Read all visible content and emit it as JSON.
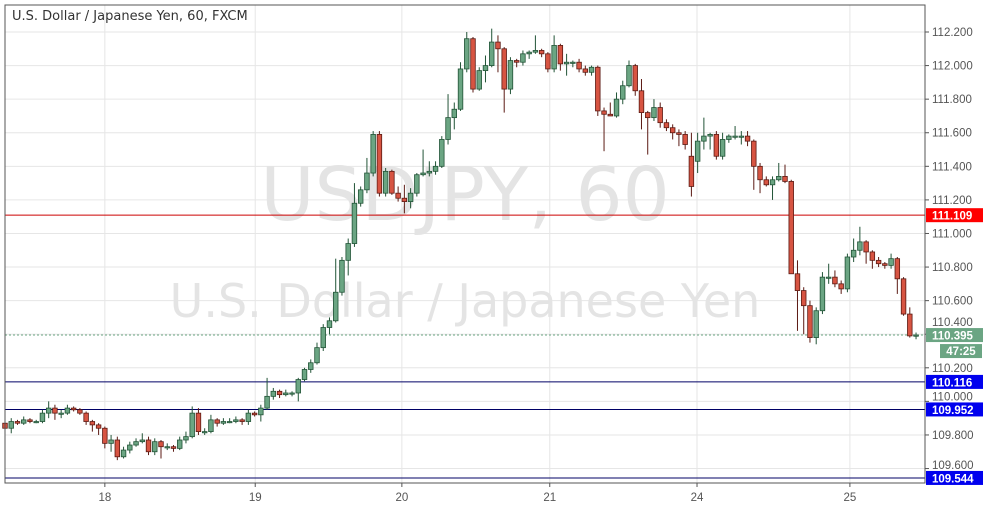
{
  "chart_data": {
    "type": "candlestick",
    "title": "U.S. Dollar / Japanese Yen, 60, FXCM",
    "watermark": {
      "symbol": "USDJPY, 60",
      "description": "U.S. Dollar / Japanese Yen"
    },
    "ylim": [
      109.46,
      112.34
    ],
    "y_ticks": [
      "112.200",
      "112.000",
      "111.800",
      "111.600",
      "111.400",
      "111.200",
      "111.000",
      "110.800",
      "110.600",
      "110.400",
      "110.200",
      "110.000",
      "109.800",
      "109.600"
    ],
    "x_ticks": [
      {
        "label": "18",
        "bar": 16.0
      },
      {
        "label": "19",
        "bar": 40.1
      },
      {
        "label": "20",
        "bar": 63.6
      },
      {
        "label": "21",
        "bar": 87.3
      },
      {
        "label": "24",
        "bar": 110.9
      },
      {
        "label": "25",
        "bar": 135.4
      }
    ],
    "ohlc": [
      [
        109.87,
        109.89,
        109.82,
        109.84
      ],
      [
        109.84,
        109.9,
        109.81,
        109.88
      ],
      [
        109.88,
        109.89,
        109.86,
        109.87
      ],
      [
        109.87,
        109.91,
        109.86,
        109.89
      ],
      [
        109.89,
        109.9,
        109.87,
        109.88
      ],
      [
        109.88,
        109.89,
        109.87,
        109.88
      ],
      [
        109.88,
        109.95,
        109.87,
        109.93
      ],
      [
        109.93,
        110.0,
        109.9,
        109.96
      ],
      [
        109.96,
        109.98,
        109.89,
        109.93
      ],
      [
        109.93,
        109.95,
        109.9,
        109.93
      ],
      [
        109.93,
        109.98,
        109.92,
        109.96
      ],
      [
        109.96,
        109.97,
        109.94,
        109.95
      ],
      [
        109.95,
        109.96,
        109.92,
        109.93
      ],
      [
        109.93,
        109.94,
        109.86,
        109.88
      ],
      [
        109.88,
        109.89,
        109.82,
        109.86
      ],
      [
        109.86,
        109.87,
        109.8,
        109.84
      ],
      [
        109.84,
        109.85,
        109.72,
        109.75
      ],
      [
        109.75,
        109.8,
        109.7,
        109.77
      ],
      [
        109.77,
        109.79,
        109.65,
        109.67
      ],
      [
        109.67,
        109.73,
        109.66,
        109.71
      ],
      [
        109.71,
        109.76,
        109.69,
        109.74
      ],
      [
        109.74,
        109.78,
        109.73,
        109.76
      ],
      [
        109.76,
        109.81,
        109.75,
        109.77
      ],
      [
        109.77,
        109.79,
        109.68,
        109.7
      ],
      [
        109.7,
        109.78,
        109.68,
        109.76
      ],
      [
        109.76,
        109.77,
        109.66,
        109.73
      ],
      [
        109.73,
        109.75,
        109.71,
        109.73
      ],
      [
        109.73,
        109.74,
        109.7,
        109.72
      ],
      [
        109.72,
        109.79,
        109.71,
        109.77
      ],
      [
        109.77,
        109.82,
        109.75,
        109.79
      ],
      [
        109.79,
        109.97,
        109.78,
        109.93
      ],
      [
        109.93,
        109.96,
        109.8,
        109.82
      ],
      [
        109.82,
        109.84,
        109.8,
        109.82
      ],
      [
        109.82,
        109.92,
        109.81,
        109.89
      ],
      [
        109.89,
        109.9,
        109.85,
        109.87
      ],
      [
        109.87,
        109.9,
        109.86,
        109.88
      ],
      [
        109.88,
        109.9,
        109.87,
        109.88
      ],
      [
        109.88,
        109.91,
        109.87,
        109.89
      ],
      [
        109.89,
        109.9,
        109.86,
        109.88
      ],
      [
        109.88,
        109.95,
        109.86,
        109.93
      ],
      [
        109.93,
        109.94,
        109.91,
        109.92
      ],
      [
        109.92,
        109.98,
        109.88,
        109.96
      ],
      [
        109.96,
        110.14,
        109.95,
        110.03
      ],
      [
        110.03,
        110.08,
        110.01,
        110.06
      ],
      [
        110.06,
        110.07,
        110.02,
        110.04
      ],
      [
        110.04,
        110.07,
        110.03,
        110.05
      ],
      [
        110.05,
        110.06,
        110.03,
        110.05
      ],
      [
        110.05,
        110.14,
        110.0,
        110.13
      ],
      [
        110.13,
        110.2,
        110.12,
        110.19
      ],
      [
        110.19,
        110.25,
        110.17,
        110.23
      ],
      [
        110.23,
        110.35,
        110.22,
        110.32
      ],
      [
        110.32,
        110.46,
        110.3,
        110.44
      ],
      [
        110.44,
        110.5,
        110.4,
        110.48
      ],
      [
        110.48,
        110.85,
        110.47,
        110.65
      ],
      [
        110.65,
        110.86,
        110.63,
        110.84
      ],
      [
        110.84,
        110.97,
        110.75,
        110.94
      ],
      [
        110.94,
        111.3,
        110.92,
        111.18
      ],
      [
        111.18,
        111.28,
        111.16,
        111.26
      ],
      [
        111.26,
        111.45,
        111.24,
        111.36
      ],
      [
        111.36,
        111.61,
        111.34,
        111.59
      ],
      [
        111.59,
        111.61,
        111.22,
        111.24
      ],
      [
        111.24,
        111.39,
        111.22,
        111.37
      ],
      [
        111.37,
        111.38,
        111.23,
        111.24
      ],
      [
        111.24,
        111.28,
        111.19,
        111.21
      ],
      [
        111.21,
        111.29,
        111.12,
        111.19
      ],
      [
        111.19,
        111.27,
        111.15,
        111.24
      ],
      [
        111.24,
        111.36,
        111.22,
        111.35
      ],
      [
        111.35,
        111.5,
        111.34,
        111.36
      ],
      [
        111.36,
        111.43,
        111.34,
        111.37
      ],
      [
        111.37,
        111.43,
        111.35,
        111.4
      ],
      [
        111.4,
        111.58,
        111.39,
        111.56
      ],
      [
        111.56,
        111.83,
        111.53,
        111.69
      ],
      [
        111.69,
        111.78,
        111.62,
        111.74
      ],
      [
        111.74,
        112.02,
        111.73,
        111.98
      ],
      [
        111.98,
        112.2,
        111.96,
        112.16
      ],
      [
        112.16,
        112.17,
        111.84,
        111.86
      ],
      [
        111.86,
        111.99,
        111.85,
        111.97
      ],
      [
        111.97,
        112.06,
        111.9,
        112.0
      ],
      [
        112.0,
        112.22,
        111.99,
        112.14
      ],
      [
        112.14,
        112.18,
        111.96,
        112.1
      ],
      [
        112.1,
        112.11,
        111.72,
        111.86
      ],
      [
        111.86,
        112.05,
        111.83,
        112.03
      ],
      [
        112.03,
        112.04,
        111.99,
        112.02
      ],
      [
        112.02,
        112.09,
        112.0,
        112.07
      ],
      [
        112.07,
        112.09,
        112.04,
        112.08
      ],
      [
        112.08,
        112.18,
        112.07,
        112.09
      ],
      [
        112.09,
        112.1,
        112.05,
        112.07
      ],
      [
        112.07,
        112.08,
        111.96,
        111.98
      ],
      [
        111.98,
        112.18,
        111.96,
        112.12
      ],
      [
        112.12,
        112.13,
        111.97,
        112.01
      ],
      [
        112.01,
        112.07,
        111.94,
        112.02
      ],
      [
        112.02,
        112.03,
        111.99,
        112.02
      ],
      [
        112.02,
        112.04,
        111.96,
        111.98
      ],
      [
        111.98,
        112.0,
        111.94,
        111.96
      ],
      [
        111.96,
        112.0,
        111.94,
        111.99
      ],
      [
        111.99,
        112.0,
        111.7,
        111.73
      ],
      [
        111.73,
        111.75,
        111.49,
        111.71
      ],
      [
        111.71,
        111.78,
        111.7,
        111.7
      ],
      [
        111.7,
        111.84,
        111.69,
        111.8
      ],
      [
        111.8,
        111.91,
        111.77,
        111.88
      ],
      [
        111.88,
        112.03,
        111.87,
        112.0
      ],
      [
        112.0,
        112.01,
        111.82,
        111.85
      ],
      [
        111.85,
        111.92,
        111.62,
        111.72
      ],
      [
        111.72,
        111.73,
        111.47,
        111.69
      ],
      [
        111.69,
        111.8,
        111.67,
        111.75
      ],
      [
        111.75,
        111.78,
        111.63,
        111.66
      ],
      [
        111.66,
        111.68,
        111.61,
        111.63
      ],
      [
        111.63,
        111.65,
        111.56,
        111.6
      ],
      [
        111.6,
        111.62,
        111.52,
        111.59
      ],
      [
        111.59,
        111.61,
        111.5,
        111.53
      ],
      [
        111.46,
        111.6,
        111.22,
        111.28
      ],
      [
        111.43,
        111.6,
        111.36,
        111.55
      ],
      [
        111.55,
        111.69,
        111.5,
        111.58
      ],
      [
        111.58,
        111.6,
        111.5,
        111.59
      ],
      [
        111.59,
        111.61,
        111.44,
        111.46
      ],
      [
        111.46,
        111.6,
        111.44,
        111.56
      ],
      [
        111.56,
        111.59,
        111.54,
        111.58
      ],
      [
        111.58,
        111.64,
        111.56,
        111.58
      ],
      [
        111.58,
        111.61,
        111.53,
        111.58
      ],
      [
        111.58,
        111.61,
        111.52,
        111.55
      ],
      [
        111.55,
        111.56,
        111.26,
        111.4
      ],
      [
        111.4,
        111.42,
        111.24,
        111.32
      ],
      [
        111.32,
        111.34,
        111.28,
        111.29
      ],
      [
        111.29,
        111.34,
        111.2,
        111.32
      ],
      [
        111.32,
        111.42,
        111.31,
        111.34
      ],
      [
        111.34,
        111.41,
        111.3,
        111.31
      ],
      [
        111.31,
        111.32,
        110.76,
        110.76
      ],
      [
        110.76,
        110.84,
        110.42,
        110.66
      ],
      [
        110.66,
        110.68,
        110.4,
        110.57
      ],
      [
        110.57,
        110.6,
        110.35,
        110.38
      ],
      [
        110.38,
        110.56,
        110.34,
        110.54
      ],
      [
        110.54,
        110.77,
        110.52,
        110.74
      ],
      [
        110.74,
        110.82,
        110.7,
        110.74
      ],
      [
        110.74,
        110.78,
        110.68,
        110.7
      ],
      [
        110.7,
        110.72,
        110.64,
        110.67
      ],
      [
        110.67,
        110.88,
        110.65,
        110.86
      ],
      [
        110.86,
        110.97,
        110.83,
        110.9
      ],
      [
        110.9,
        111.04,
        110.87,
        110.95
      ],
      [
        110.95,
        110.96,
        110.82,
        110.89
      ],
      [
        110.89,
        110.9,
        110.79,
        110.84
      ],
      [
        110.84,
        110.86,
        110.8,
        110.82
      ],
      [
        110.82,
        110.83,
        110.79,
        110.81
      ],
      [
        110.81,
        110.88,
        110.79,
        110.85
      ],
      [
        110.85,
        110.86,
        110.64,
        110.73
      ],
      [
        110.73,
        110.74,
        110.51,
        110.52
      ],
      [
        110.52,
        110.56,
        110.38,
        110.39
      ],
      [
        110.39,
        110.41,
        110.37,
        110.395
      ]
    ],
    "horizontal_lines": [
      {
        "price": 111.109,
        "label": "111.109",
        "color": "#cc0000",
        "label_bg": "#ff0000"
      },
      {
        "price": 110.116,
        "label": "110.116",
        "color": "#000066",
        "label_bg": "#0000ee"
      },
      {
        "price": 109.952,
        "label": "109.952",
        "color": "#000066",
        "label_bg": "#0000ee"
      },
      {
        "price": 109.544,
        "label": "109.544",
        "color": "#000066",
        "label_bg": "#0000ee"
      }
    ],
    "last_price": {
      "price": 110.395,
      "label": "110.395",
      "countdown": "47:25",
      "color": "#6ba583"
    },
    "colors": {
      "up": "#6ba583",
      "down": "#d75442",
      "up_border": "#225437",
      "down_border": "#5b1a13"
    },
    "grid": true
  }
}
